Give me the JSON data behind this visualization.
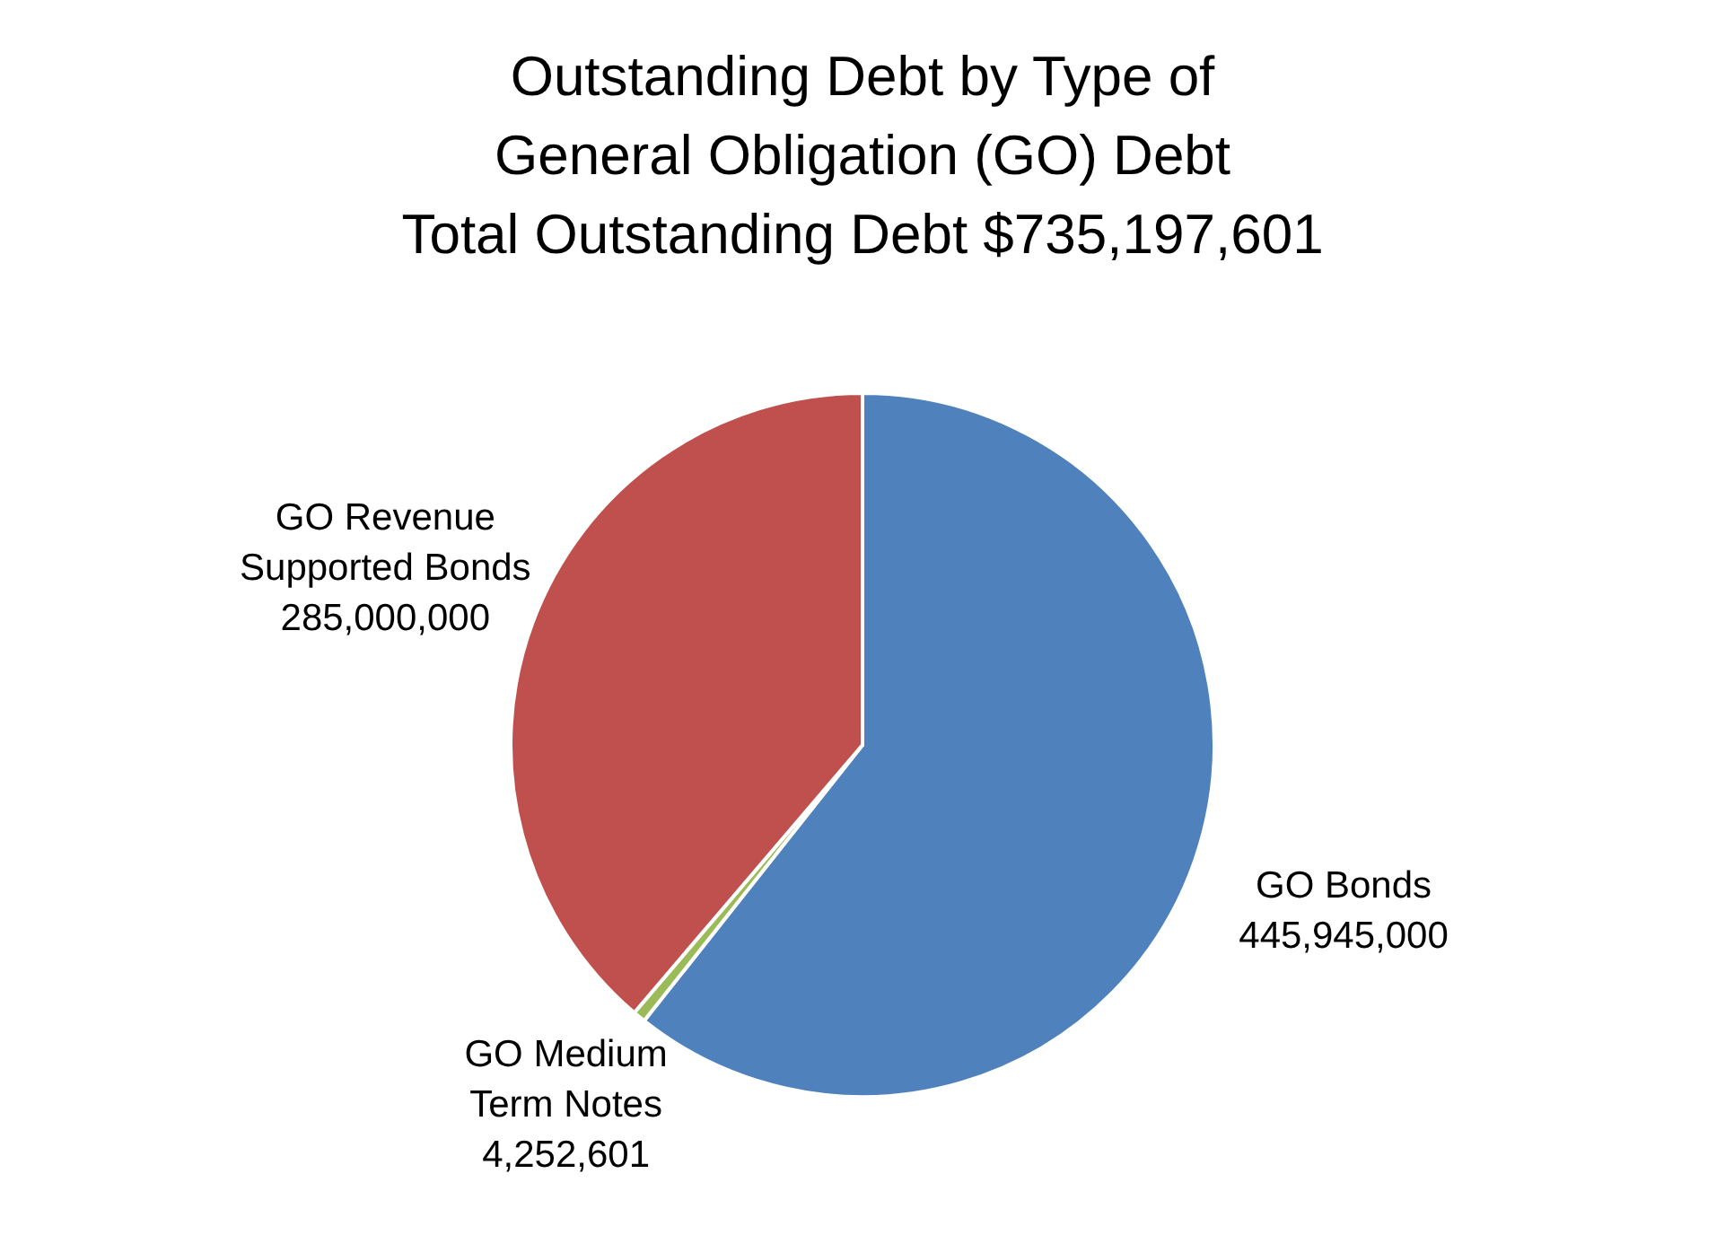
{
  "chart_data": {
    "type": "pie",
    "title": "Outstanding Debt by Type of\nGeneral Obligation (GO) Debt\nTotal Outstanding Debt $735,197,601",
    "categories": [
      "GO Bonds",
      "GO Medium Term Notes",
      "GO Revenue Supported Bonds"
    ],
    "values": [
      445945000,
      4252601,
      285000000
    ],
    "colors": [
      "#4f81bd",
      "#9bbb59",
      "#c0504d"
    ],
    "value_labels": [
      "445,945,000",
      "4,252,601",
      "285,000,000"
    ]
  }
}
